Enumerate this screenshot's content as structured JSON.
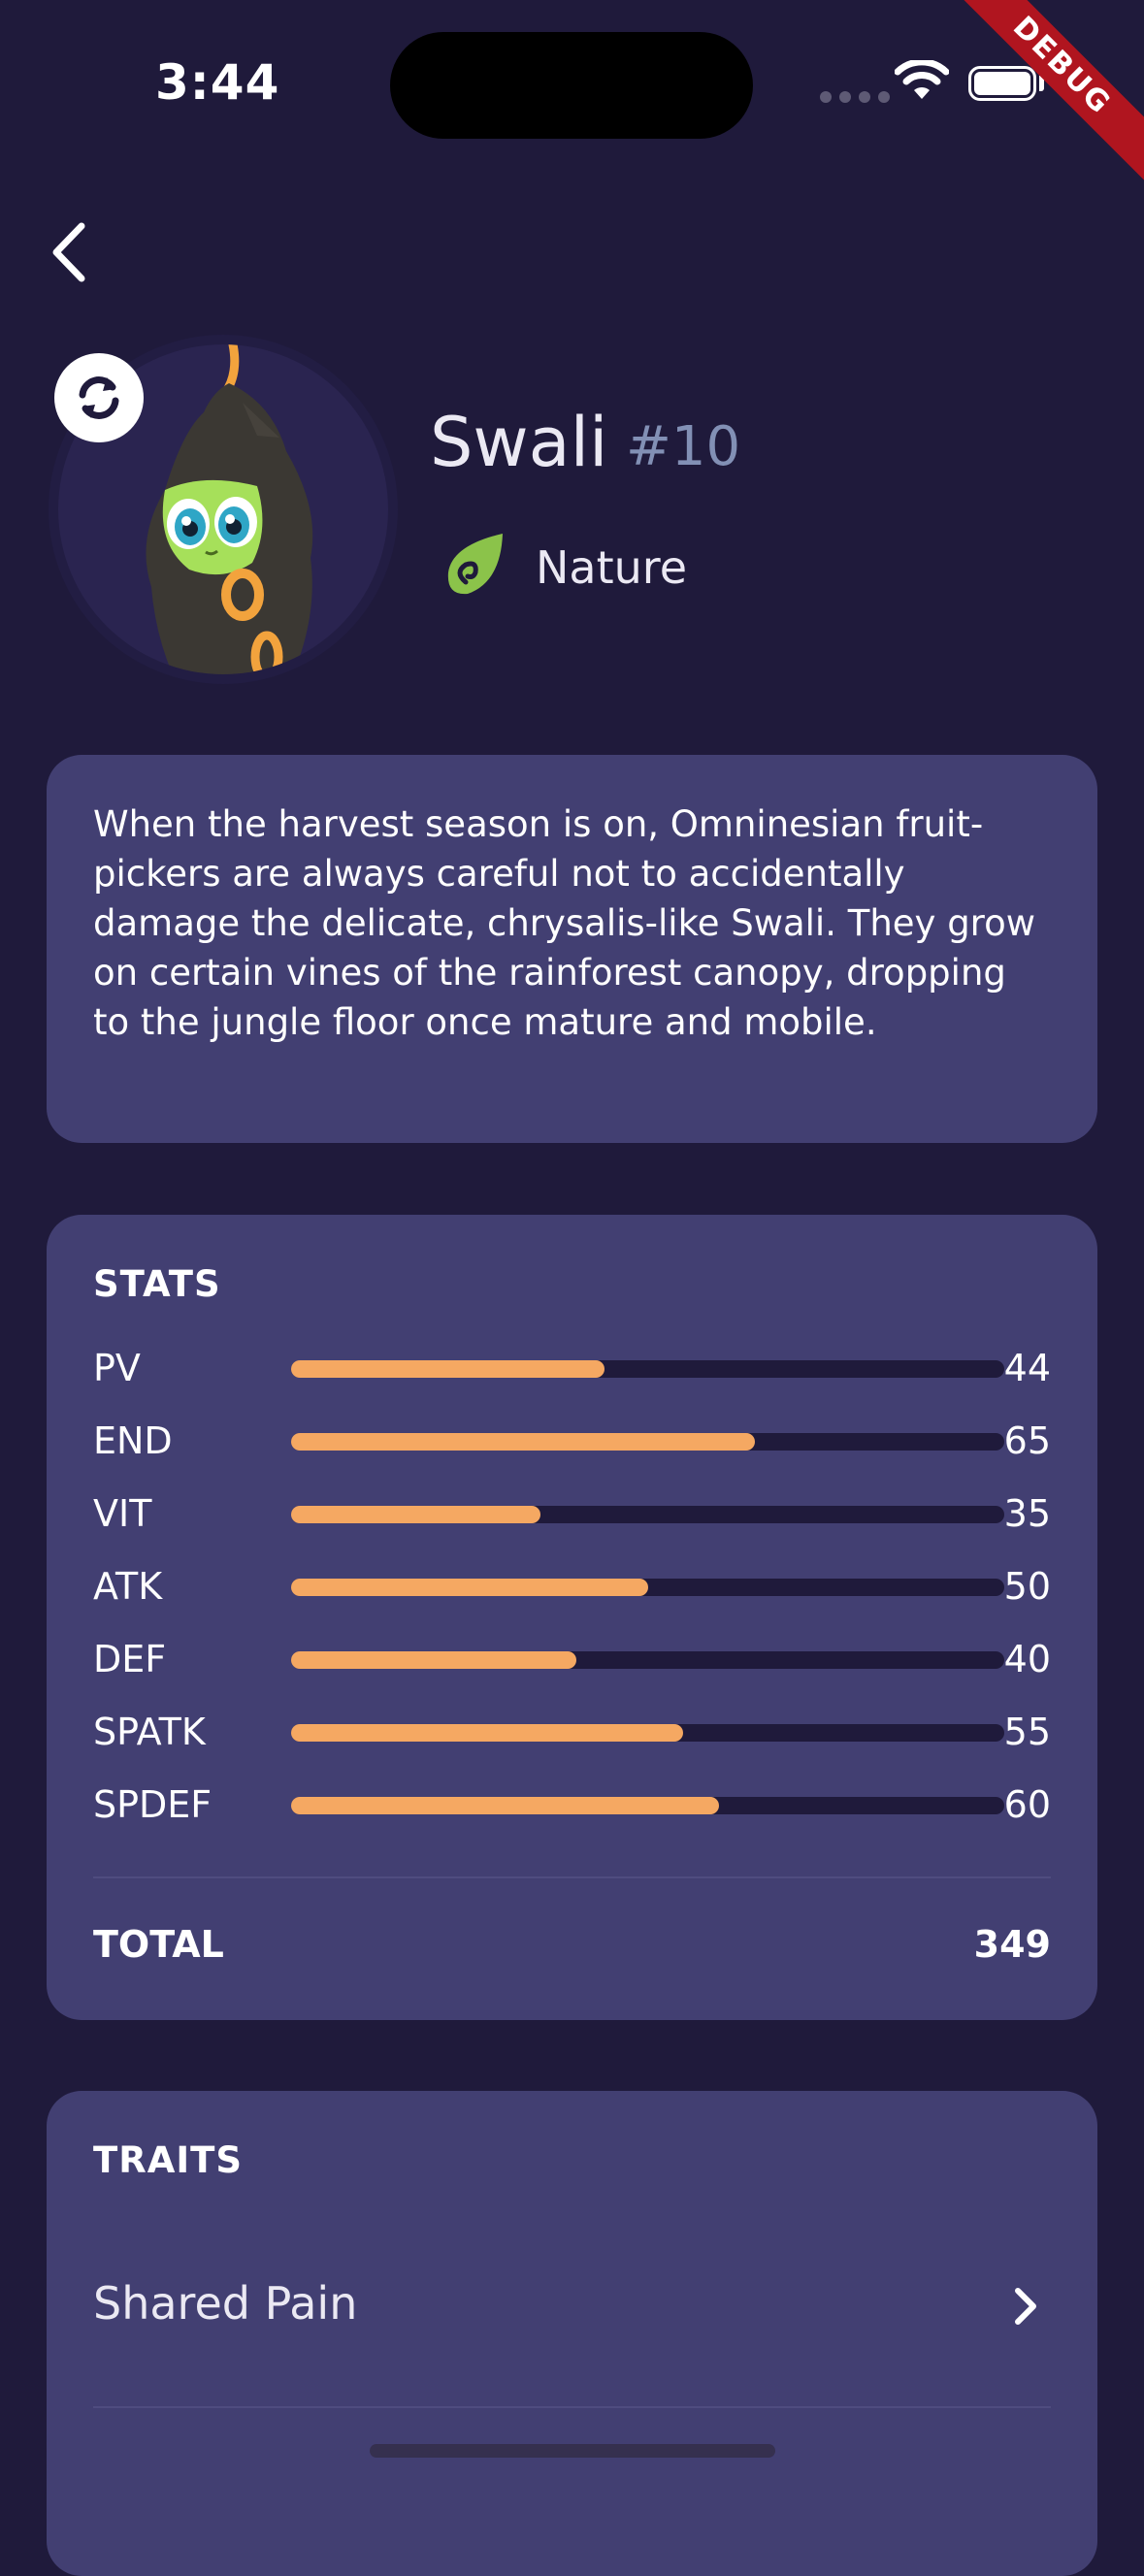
{
  "status_bar": {
    "time": "3:44"
  },
  "debug_banner": "DEBUG",
  "creature": {
    "name": "Swali",
    "number": "#10",
    "type": "Nature",
    "description": "When the harvest season is on, Omninesian fruit-pickers are always careful not to accidentally damage the delicate, chrysalis-like Swali. They grow on certain vines of the rainforest canopy, dropping to the jungle floor once mature and mobile."
  },
  "stats": {
    "title": "STATS",
    "items": [
      {
        "label": "PV",
        "value": "44"
      },
      {
        "label": "END",
        "value": "65"
      },
      {
        "label": "VIT",
        "value": "35"
      },
      {
        "label": "ATK",
        "value": "50"
      },
      {
        "label": "DEF",
        "value": "40"
      },
      {
        "label": "SPATK",
        "value": "55"
      },
      {
        "label": "SPDEF",
        "value": "60"
      }
    ],
    "bar_max": 100,
    "total_label": "TOTAL",
    "total_value": "349"
  },
  "traits": {
    "title": "TRAITS",
    "items": [
      {
        "label": "Shared Pain"
      }
    ]
  },
  "colors": {
    "background": "#1f1a3b",
    "card": "#423f72",
    "stat_bar": "#f5a862",
    "number": "#8290b5"
  },
  "icons": {
    "back": "chevron-left-icon",
    "swap": "refresh-icon",
    "type": "leaf-icon",
    "trait": "chevron-right-icon"
  }
}
